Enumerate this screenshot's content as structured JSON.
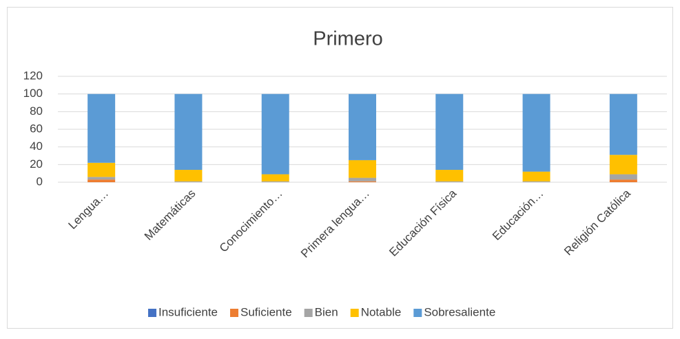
{
  "chart_data": {
    "type": "stacked_bar",
    "title": "Primero",
    "categories": [
      "Lengua…",
      "Matemáticas",
      "Conocimiento…",
      "Primera lengua…",
      "Educación Física",
      "Educación…",
      "Religión Católica"
    ],
    "series": [
      {
        "name": "Insuficiente",
        "color": "#4472c4",
        "values": [
          0,
          0,
          0,
          0,
          0,
          0,
          0
        ]
      },
      {
        "name": "Suficiente",
        "color": "#ed7d31",
        "values": [
          3,
          0,
          0,
          1,
          0,
          0,
          3
        ]
      },
      {
        "name": "Bien",
        "color": "#a5a5a5",
        "values": [
          3,
          1,
          1,
          4,
          1,
          1,
          6
        ]
      },
      {
        "name": "Notable",
        "color": "#ffc000",
        "values": [
          16,
          13,
          8,
          20,
          13,
          11,
          22
        ]
      },
      {
        "name": "Sobresaliente",
        "color": "#5b9bd5",
        "values": [
          78,
          86,
          91,
          75,
          86,
          88,
          69
        ]
      }
    ],
    "ylim": [
      0,
      120
    ],
    "yticks": [
      0,
      20,
      40,
      60,
      80,
      100,
      120
    ],
    "grid": true,
    "legend": "bottom"
  }
}
